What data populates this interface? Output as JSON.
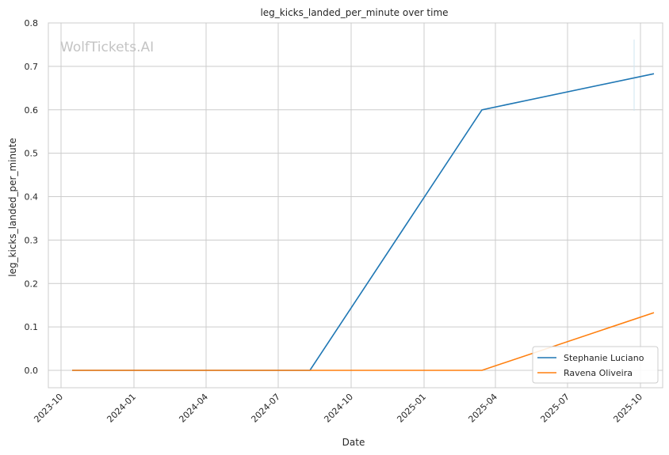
{
  "chart_data": {
    "type": "line",
    "title": "leg_kicks_landed_per_minute over time",
    "xlabel": "Date",
    "ylabel": "leg_kicks_landed_per_minute",
    "watermark": "WolfTickets.AI",
    "x_ticks": [
      "2023-10",
      "2024-01",
      "2024-04",
      "2024-07",
      "2024-10",
      "2025-01",
      "2025-04",
      "2025-07",
      "2025-10"
    ],
    "y_ticks": [
      "0.0",
      "0.1",
      "0.2",
      "0.3",
      "0.4",
      "0.5",
      "0.6",
      "0.7",
      "0.8"
    ],
    "xlim": [
      "2023-09-15",
      "2025-10-29"
    ],
    "ylim": [
      -0.04,
      0.8
    ],
    "grid": true,
    "legend_position": "lower-right",
    "series": [
      {
        "name": "Stephanie Luciano",
        "color": "#1f77b4",
        "points": [
          {
            "x": "2023-10-15",
            "y": 0.0
          },
          {
            "x": "2024-08-10",
            "y": 0.0
          },
          {
            "x": "2025-03-15",
            "y": 0.6
          },
          {
            "x": "2025-10-18",
            "y": 0.683
          }
        ]
      },
      {
        "name": "Ravena Oliveira",
        "color": "#ff7f0e",
        "points": [
          {
            "x": "2023-10-15",
            "y": 0.0
          },
          {
            "x": "2025-03-15",
            "y": 0.0
          },
          {
            "x": "2025-10-18",
            "y": 0.133
          }
        ]
      }
    ]
  }
}
